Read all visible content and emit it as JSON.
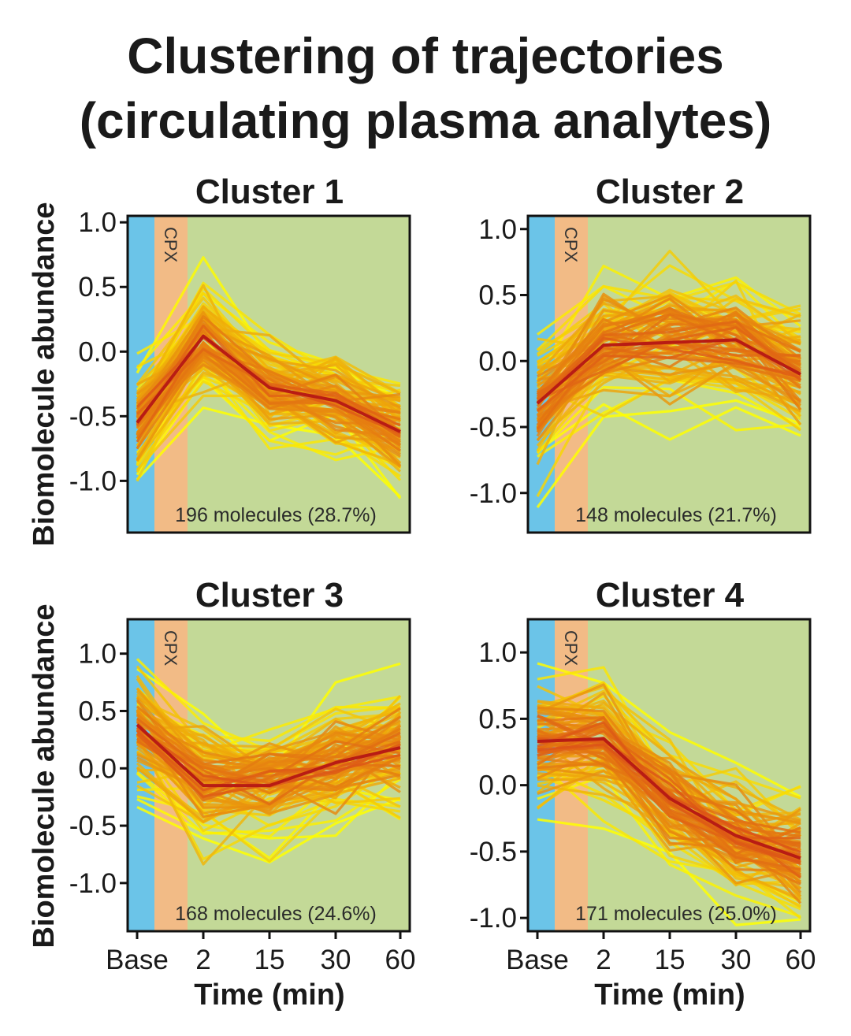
{
  "title_line1": "Clustering of trajectories",
  "title_line2": "(circulating plasma analytes)",
  "ylabel": "Biomolecule abundance",
  "xlabel": "Time (min)",
  "phase_label": "CPX",
  "colors": {
    "baseline_band": "#6bc4e8",
    "cpx_band": "#f2bb86",
    "recovery_band": "#c3d997",
    "line_low": "#ffff00",
    "line_high": "#d42a1c",
    "mean_line": "#b81c14"
  },
  "chart_data": [
    {
      "type": "line",
      "title": "Cluster 1",
      "annotation": "196 molecules (28.7%)",
      "categories": [
        "Base",
        "2",
        "15",
        "30",
        "60"
      ],
      "ylim": [
        -1.4,
        1.05
      ],
      "yticks": [
        "1.0",
        "0.5",
        "0.0",
        "-0.5",
        "-1.0"
      ],
      "x_numeric": [
        0,
        2,
        15,
        30,
        60
      ],
      "mean_values": [
        -0.55,
        0.12,
        -0.28,
        -0.38,
        -0.62
      ],
      "spread": 0.17,
      "n_series": 196,
      "grid": false
    },
    {
      "type": "line",
      "title": "Cluster 2",
      "annotation": "148 molecules (21.7%)",
      "categories": [
        "Base",
        "2",
        "15",
        "30",
        "60"
      ],
      "ylim": [
        -1.3,
        1.1
      ],
      "yticks": [
        "1.0",
        "0.5",
        "0.0",
        "-0.5",
        "-1.0"
      ],
      "x_numeric": [
        0,
        2,
        15,
        30,
        60
      ],
      "mean_values": [
        -0.32,
        0.12,
        0.14,
        0.16,
        -0.1
      ],
      "spread": 0.2,
      "n_series": 148,
      "grid": false
    },
    {
      "type": "line",
      "title": "Cluster 3",
      "annotation": "168 molecules (24.6%)",
      "categories": [
        "Base",
        "2",
        "15",
        "30",
        "60"
      ],
      "ylim": [
        -1.42,
        1.3
      ],
      "yticks": [
        "1.0",
        "0.5",
        "0.0",
        "-0.5",
        "-1.0"
      ],
      "x_numeric": [
        0,
        2,
        15,
        30,
        60
      ],
      "mean_values": [
        0.38,
        -0.15,
        -0.15,
        0.05,
        0.18
      ],
      "spread": 0.23,
      "n_series": 168,
      "grid": false
    },
    {
      "type": "line",
      "title": "Cluster 4",
      "annotation": "171 molecules (25.0%)",
      "categories": [
        "Base",
        "2",
        "15",
        "30",
        "60"
      ],
      "ylim": [
        -1.1,
        1.25
      ],
      "yticks": [
        "1.0",
        "0.5",
        "0.0",
        "-0.5",
        "-1.0"
      ],
      "x_numeric": [
        0,
        2,
        15,
        30,
        60
      ],
      "mean_values": [
        0.33,
        0.35,
        -0.1,
        -0.38,
        -0.55
      ],
      "spread": 0.18,
      "n_series": 171,
      "grid": false
    }
  ]
}
